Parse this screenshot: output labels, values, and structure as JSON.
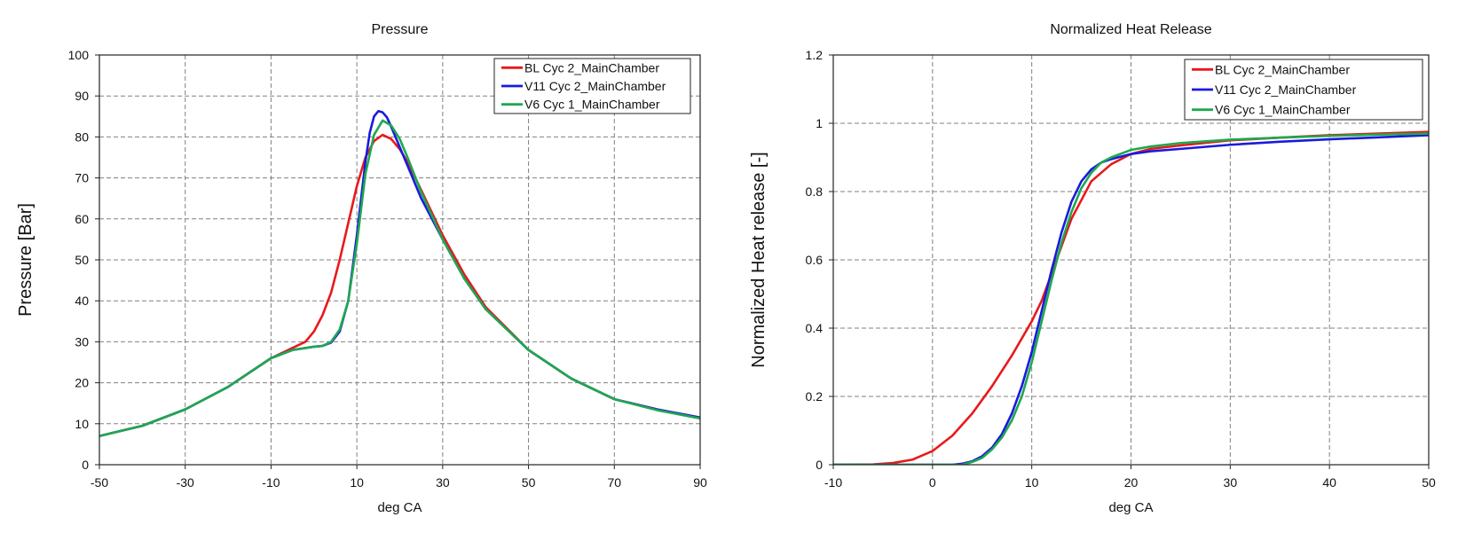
{
  "chart_data": [
    {
      "type": "line",
      "title": "Pressure",
      "xlabel": "deg CA",
      "ylabel": "Pressure [Bar]",
      "xlim": [
        -50,
        90
      ],
      "ylim": [
        0,
        100
      ],
      "xticks": [
        -50,
        -30,
        -10,
        10,
        30,
        50,
        70,
        90
      ],
      "yticks": [
        0,
        10,
        20,
        30,
        40,
        50,
        60,
        70,
        80,
        90,
        100
      ],
      "xtick_labels": [
        "-50",
        "-30",
        "-10",
        "10",
        "30",
        "50",
        "70",
        "90"
      ],
      "ytick_labels": [
        "0",
        "10",
        "20",
        "30",
        "40",
        "50",
        "60",
        "70",
        "80",
        "90",
        "100"
      ],
      "grid": true,
      "legend_position": "top-right",
      "series": [
        {
          "name": "BL Cyc 2_MainChamber",
          "color": "#e8191b",
          "x": [
            -50,
            -40,
            -30,
            -20,
            -10,
            -5,
            -2,
            0,
            2,
            4,
            6,
            8,
            10,
            12,
            14,
            16,
            18,
            20,
            22,
            25,
            30,
            35,
            40,
            50,
            60,
            70,
            80,
            90
          ],
          "y": [
            7,
            9.5,
            13.5,
            19,
            26,
            28.5,
            30,
            32.5,
            36.5,
            42,
            50,
            59,
            68,
            75,
            79,
            80.5,
            79.5,
            77,
            73.5,
            67,
            56,
            46.5,
            38.5,
            28,
            21,
            16,
            13.5,
            11.5
          ]
        },
        {
          "name": "V11 Cyc 2_MainChamber",
          "color": "#1a1adc",
          "x": [
            -50,
            -40,
            -30,
            -20,
            -10,
            -5,
            0,
            2,
            4,
            6,
            8,
            10,
            12,
            13,
            14,
            15,
            16,
            17,
            18,
            20,
            22,
            25,
            30,
            35,
            40,
            50,
            60,
            70,
            80,
            90
          ],
          "y": [
            7,
            9.5,
            13.5,
            19,
            26,
            28,
            28.8,
            29,
            29.8,
            32.5,
            40,
            56,
            74,
            81,
            85,
            86.3,
            86,
            84.8,
            82.5,
            77.5,
            72.5,
            65,
            55,
            45.5,
            38,
            28,
            21,
            16,
            13.5,
            11.5
          ]
        },
        {
          "name": "V6 Cyc 1_MainChamber",
          "color": "#1ea84f",
          "x": [
            -50,
            -40,
            -30,
            -20,
            -10,
            -5,
            0,
            2,
            4,
            6,
            8,
            10,
            12,
            14,
            16,
            18,
            20,
            22,
            25,
            30,
            35,
            40,
            50,
            60,
            70,
            80,
            90
          ],
          "y": [
            7,
            9.5,
            13.5,
            19,
            26,
            28,
            28.8,
            29,
            30,
            33,
            40,
            54,
            71,
            80.5,
            84,
            82.8,
            79.5,
            74.5,
            66.5,
            55,
            45.5,
            38,
            28,
            21,
            16,
            13.3,
            11.3
          ]
        }
      ]
    },
    {
      "type": "line",
      "title": "Normalized Heat Release",
      "xlabel": "deg CA",
      "ylabel": "Normalized Heat release [-]",
      "xlim": [
        -10,
        50
      ],
      "ylim": [
        0,
        1.2
      ],
      "xticks": [
        -10,
        0,
        10,
        20,
        30,
        40,
        50
      ],
      "yticks": [
        0,
        0.2,
        0.4,
        0.6,
        0.8,
        1,
        1.2
      ],
      "xtick_labels": [
        "-10",
        "0",
        "10",
        "20",
        "30",
        "40",
        "50"
      ],
      "ytick_labels": [
        "0",
        "0.2",
        "0.4",
        "0.6",
        "0.8",
        "1",
        "1.2"
      ],
      "grid": true,
      "legend_position": "top-right",
      "series": [
        {
          "name": "BL Cyc 2_MainChamber",
          "color": "#e8191b",
          "x": [
            -10,
            -6,
            -4,
            -2,
            0,
            2,
            4,
            6,
            8,
            10,
            11,
            12,
            14,
            16,
            18,
            20,
            22,
            25,
            30,
            35,
            40,
            45,
            50
          ],
          "y": [
            0,
            0.001,
            0.005,
            0.015,
            0.04,
            0.085,
            0.15,
            0.23,
            0.32,
            0.42,
            0.48,
            0.56,
            0.72,
            0.83,
            0.88,
            0.91,
            0.925,
            0.935,
            0.95,
            0.958,
            0.965,
            0.97,
            0.975
          ]
        },
        {
          "name": "V11 Cyc 2_MainChamber",
          "color": "#1a1adc",
          "x": [
            -10,
            2,
            3,
            4,
            5,
            6,
            7,
            8,
            9,
            10,
            11,
            12,
            13,
            14,
            15,
            16,
            17,
            18,
            20,
            22,
            25,
            30,
            35,
            40,
            45,
            50
          ],
          "y": [
            0,
            0,
            0.003,
            0.01,
            0.025,
            0.05,
            0.09,
            0.15,
            0.23,
            0.33,
            0.45,
            0.57,
            0.68,
            0.77,
            0.83,
            0.865,
            0.885,
            0.895,
            0.91,
            0.918,
            0.925,
            0.937,
            0.946,
            0.953,
            0.959,
            0.965
          ]
        },
        {
          "name": "V6 Cyc 1_MainChamber",
          "color": "#1ea84f",
          "x": [
            -10,
            3,
            4,
            5,
            6,
            7,
            8,
            9,
            10,
            11,
            12,
            13,
            14,
            15,
            16,
            17,
            18,
            20,
            22,
            25,
            30,
            35,
            40,
            45,
            50
          ],
          "y": [
            0,
            0,
            0.008,
            0.02,
            0.045,
            0.08,
            0.13,
            0.2,
            0.3,
            0.42,
            0.54,
            0.65,
            0.74,
            0.81,
            0.855,
            0.885,
            0.9,
            0.922,
            0.932,
            0.942,
            0.952,
            0.958,
            0.963,
            0.967,
            0.97
          ]
        }
      ]
    }
  ]
}
